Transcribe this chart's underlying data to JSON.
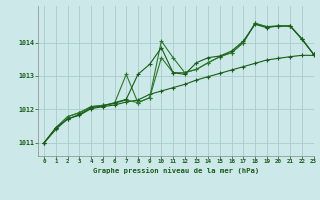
{
  "title": "Graphe pression niveau de la mer (hPa)",
  "background_color": "#cce8e8",
  "grid_color": "#aacccc",
  "line_color_dark": "#1a5c1a",
  "line_color_medium": "#2a7a2a",
  "xlim": [
    -0.5,
    23
  ],
  "ylim": [
    1010.6,
    1015.1
  ],
  "yticks": [
    1011,
    1012,
    1013,
    1014
  ],
  "xticks": [
    0,
    1,
    2,
    3,
    4,
    5,
    6,
    7,
    8,
    9,
    10,
    11,
    12,
    13,
    14,
    15,
    16,
    17,
    18,
    19,
    20,
    21,
    22,
    23
  ],
  "series": [
    [
      1011.0,
      1011.45,
      1011.7,
      1011.85,
      1012.05,
      1012.1,
      1012.2,
      1012.3,
      1013.05,
      1013.35,
      1013.85,
      1013.1,
      1013.05,
      1013.4,
      1013.55,
      1013.6,
      1013.75,
      1014.05,
      1014.55,
      1014.45,
      1014.5,
      1014.5,
      1014.1,
      1013.65
    ],
    [
      1011.0,
      1011.45,
      1011.78,
      1011.9,
      1012.08,
      1012.12,
      1012.18,
      1012.28,
      1012.2,
      1012.35,
      1013.55,
      1013.1,
      1013.1,
      1013.2,
      1013.4,
      1013.58,
      1013.7,
      1014.0,
      1014.58,
      1014.48,
      1014.5,
      1014.5,
      1014.12,
      1013.65
    ],
    [
      1011.0,
      1011.45,
      1011.78,
      1011.9,
      1012.08,
      1012.12,
      1012.18,
      1013.05,
      1012.2,
      1012.35,
      1014.05,
      1013.55,
      1013.1,
      1013.2,
      1013.4,
      1013.58,
      1013.7,
      1014.0,
      1014.58,
      1014.48,
      1014.5,
      1014.5,
      1014.12,
      1013.65
    ],
    [
      1011.0,
      1011.4,
      1011.72,
      1011.82,
      1012.02,
      1012.08,
      1012.13,
      1012.22,
      1012.28,
      1012.45,
      1012.55,
      1012.65,
      1012.75,
      1012.88,
      1012.98,
      1013.08,
      1013.18,
      1013.28,
      1013.38,
      1013.48,
      1013.53,
      1013.58,
      1013.62,
      1013.62
    ]
  ]
}
